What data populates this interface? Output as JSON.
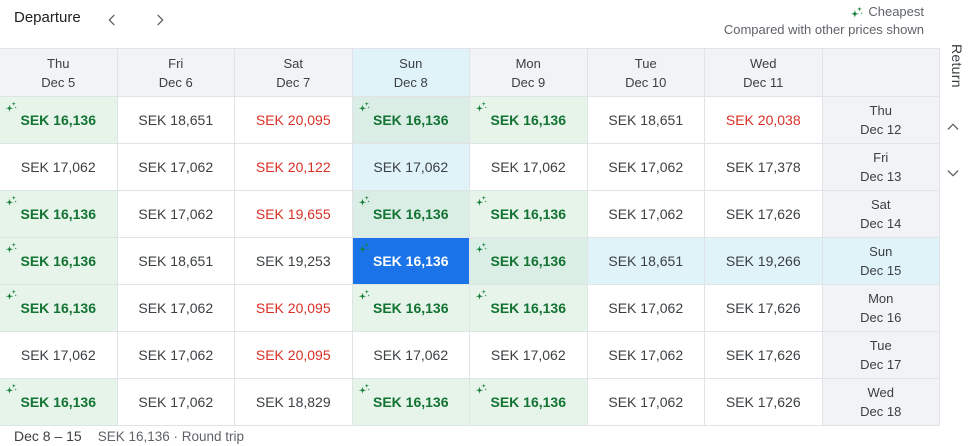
{
  "toolbar": {
    "departure_label": "Departure"
  },
  "legend": {
    "cheapest_label": "Cheapest",
    "note": "Compared with other prices shown"
  },
  "return_axis": {
    "label": "Return"
  },
  "footer": {
    "date_range": "Dec 8 – 15",
    "summary": "SEK 16,136 · Round trip"
  },
  "colors": {
    "accent": "#1a73e8",
    "cheapest_green": "#137333",
    "spark_green": "#188038",
    "high_red": "#d93025",
    "cheapest_bg": "#e6f4ea",
    "cheapest_bg_highlight": "#dbeee6",
    "highlight_cyan": "#e0f3f9",
    "header_gray": "#f1f3f4",
    "grid_line": "#e0e3e7"
  },
  "grid": {
    "departure_columns": [
      {
        "day": "Thu",
        "date": "Dec 5"
      },
      {
        "day": "Fri",
        "date": "Dec 6"
      },
      {
        "day": "Sat",
        "date": "Dec 7"
      },
      {
        "day": "Sun",
        "date": "Dec 8"
      },
      {
        "day": "Mon",
        "date": "Dec 9"
      },
      {
        "day": "Tue",
        "date": "Dec 10"
      },
      {
        "day": "Wed",
        "date": "Dec 11"
      }
    ],
    "return_rows": [
      {
        "day": "Thu",
        "date": "Dec 12"
      },
      {
        "day": "Fri",
        "date": "Dec 13"
      },
      {
        "day": "Sat",
        "date": "Dec 14"
      },
      {
        "day": "Sun",
        "date": "Dec 15"
      },
      {
        "day": "Mon",
        "date": "Dec 16"
      },
      {
        "day": "Tue",
        "date": "Dec 17"
      },
      {
        "day": "Wed",
        "date": "Dec 18"
      }
    ],
    "selected": {
      "row": 3,
      "col": 3
    },
    "prices": [
      [
        {
          "value": "SEK 16,136",
          "state": "cheapest"
        },
        {
          "value": "SEK 18,651",
          "state": "normal"
        },
        {
          "value": "SEK 20,095",
          "state": "high"
        },
        {
          "value": "SEK 16,136",
          "state": "cheapest"
        },
        {
          "value": "SEK 16,136",
          "state": "cheapest"
        },
        {
          "value": "SEK 18,651",
          "state": "normal"
        },
        {
          "value": "SEK 20,038",
          "state": "high"
        }
      ],
      [
        {
          "value": "SEK 17,062",
          "state": "normal"
        },
        {
          "value": "SEK 17,062",
          "state": "normal"
        },
        {
          "value": "SEK 20,122",
          "state": "high"
        },
        {
          "value": "SEK 17,062",
          "state": "normal"
        },
        {
          "value": "SEK 17,062",
          "state": "normal"
        },
        {
          "value": "SEK 17,062",
          "state": "normal"
        },
        {
          "value": "SEK 17,378",
          "state": "normal"
        }
      ],
      [
        {
          "value": "SEK 16,136",
          "state": "cheapest"
        },
        {
          "value": "SEK 17,062",
          "state": "normal"
        },
        {
          "value": "SEK 19,655",
          "state": "high"
        },
        {
          "value": "SEK 16,136",
          "state": "cheapest"
        },
        {
          "value": "SEK 16,136",
          "state": "cheapest"
        },
        {
          "value": "SEK 17,062",
          "state": "normal"
        },
        {
          "value": "SEK 17,626",
          "state": "normal"
        }
      ],
      [
        {
          "value": "SEK 16,136",
          "state": "cheapest"
        },
        {
          "value": "SEK 18,651",
          "state": "normal"
        },
        {
          "value": "SEK 19,253",
          "state": "normal"
        },
        {
          "value": "SEK 16,136",
          "state": "selected"
        },
        {
          "value": "SEK 16,136",
          "state": "cheapest"
        },
        {
          "value": "SEK 18,651",
          "state": "normal"
        },
        {
          "value": "SEK 19,266",
          "state": "normal"
        }
      ],
      [
        {
          "value": "SEK 16,136",
          "state": "cheapest"
        },
        {
          "value": "SEK 17,062",
          "state": "normal"
        },
        {
          "value": "SEK 20,095",
          "state": "high"
        },
        {
          "value": "SEK 16,136",
          "state": "cheapest"
        },
        {
          "value": "SEK 16,136",
          "state": "cheapest"
        },
        {
          "value": "SEK 17,062",
          "state": "normal"
        },
        {
          "value": "SEK 17,626",
          "state": "normal"
        }
      ],
      [
        {
          "value": "SEK 17,062",
          "state": "normal"
        },
        {
          "value": "SEK 17,062",
          "state": "normal"
        },
        {
          "value": "SEK 20,095",
          "state": "high"
        },
        {
          "value": "SEK 17,062",
          "state": "normal"
        },
        {
          "value": "SEK 17,062",
          "state": "normal"
        },
        {
          "value": "SEK 17,062",
          "state": "normal"
        },
        {
          "value": "SEK 17,626",
          "state": "normal"
        }
      ],
      [
        {
          "value": "SEK 16,136",
          "state": "cheapest"
        },
        {
          "value": "SEK 17,062",
          "state": "normal"
        },
        {
          "value": "SEK 18,829",
          "state": "normal"
        },
        {
          "value": "SEK 16,136",
          "state": "cheapest"
        },
        {
          "value": "SEK 16,136",
          "state": "cheapest"
        },
        {
          "value": "SEK 17,062",
          "state": "normal"
        },
        {
          "value": "SEK 17,626",
          "state": "normal"
        }
      ]
    ]
  }
}
